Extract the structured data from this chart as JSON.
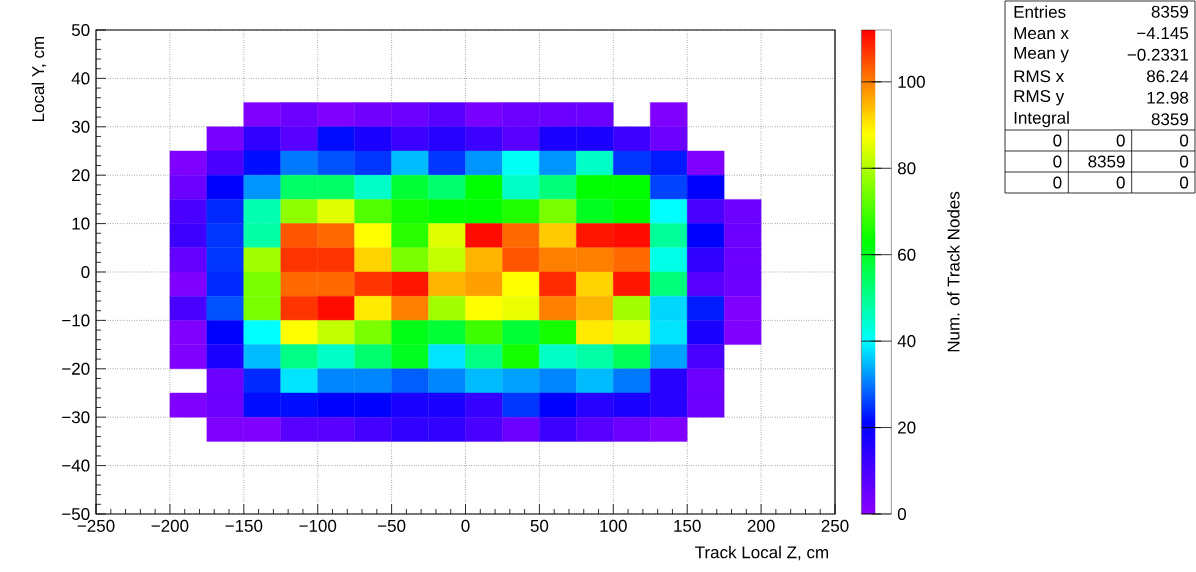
{
  "chart_data": {
    "type": "heatmap",
    "xlabel": "Track Local Z, cm",
    "ylabel": "Local Y, cm",
    "clabel": "Num. of Track Nodes",
    "x": [
      -187.5,
      -162.5,
      -137.5,
      -112.5,
      -87.5,
      -62.5,
      -37.5,
      -12.5,
      12.5,
      37.5,
      62.5,
      87.5,
      112.5,
      137.5,
      162.5,
      187.5
    ],
    "y": [
      32.5,
      27.5,
      22.5,
      17.5,
      12.5,
      7.5,
      2.5,
      -2.5,
      -7.5,
      -12.5,
      -17.5,
      -22.5,
      -27.5,
      -32.5
    ],
    "cells": [
      [
        null,
        null,
        2,
        5,
        2,
        4,
        5,
        8,
        3,
        5,
        5,
        5,
        null,
        2,
        null,
        null
      ],
      [
        null,
        3,
        14,
        8,
        22,
        17,
        12,
        15,
        12,
        8,
        17,
        17,
        12,
        5,
        null,
        null
      ],
      [
        2,
        10,
        22,
        30,
        27,
        25,
        35,
        25,
        32,
        41,
        32,
        45,
        25,
        23,
        2,
        null
      ],
      [
        5,
        21,
        32,
        54,
        54,
        45,
        58,
        53,
        63,
        45,
        52,
        63,
        63,
        26,
        21,
        null
      ],
      [
        10,
        24,
        47,
        77,
        85,
        71,
        65,
        63,
        63,
        66,
        75,
        60,
        63,
        40,
        10,
        5
      ],
      [
        12,
        25,
        48,
        104,
        102,
        88,
        67,
        85,
        111,
        102,
        93,
        110,
        111,
        49,
        21,
        5
      ],
      [
        6,
        25,
        79,
        107,
        107,
        92,
        75,
        82,
        95,
        104,
        100,
        100,
        102,
        42,
        14,
        5
      ],
      [
        2,
        24,
        75,
        102,
        102,
        107,
        110,
        95,
        97,
        88,
        108,
        92,
        110,
        52,
        8,
        5
      ],
      [
        10,
        27,
        75,
        107,
        111,
        90,
        100,
        79,
        88,
        86,
        100,
        95,
        79,
        37,
        23,
        2
      ],
      [
        2,
        21,
        40,
        88,
        82,
        75,
        61,
        58,
        69,
        58,
        65,
        90,
        85,
        38,
        17,
        2
      ],
      [
        2,
        17,
        35,
        51,
        45,
        53,
        60,
        38,
        51,
        65,
        45,
        48,
        55,
        33,
        10,
        null
      ],
      [
        null,
        5,
        24,
        38,
        31,
        31,
        28,
        31,
        35,
        33,
        31,
        35,
        30,
        15,
        5,
        null
      ],
      [
        2,
        5,
        22,
        22,
        21,
        21,
        17,
        17,
        13,
        25,
        21,
        15,
        17,
        15,
        5,
        null
      ],
      [
        null,
        2,
        2,
        8,
        8,
        11,
        14,
        14,
        10,
        5,
        12,
        8,
        5,
        2,
        null,
        null
      ]
    ],
    "xlim": [
      -250,
      250
    ],
    "ylim": [
      -50,
      50
    ],
    "clim": [
      0,
      112
    ],
    "xticks": [
      {
        "value": -250,
        "label": "−250"
      },
      {
        "value": -200,
        "label": "−200"
      },
      {
        "value": -150,
        "label": "−150"
      },
      {
        "value": -100,
        "label": "−100"
      },
      {
        "value": -50,
        "label": "−50"
      },
      0,
      50,
      100,
      150,
      200,
      250
    ],
    "yticks": [
      {
        "value": -50,
        "label": "−50"
      },
      {
        "value": -40,
        "label": "−40"
      },
      {
        "value": -30,
        "label": "−30"
      },
      {
        "value": -20,
        "label": "−20"
      },
      {
        "value": -10,
        "label": "−10"
      },
      0,
      10,
      20,
      30,
      40,
      50
    ],
    "cticks": [
      0,
      20,
      40,
      60,
      80,
      100
    ],
    "grid": true,
    "annotations": [
      "Entries",
      "8359",
      "Mean x",
      "−4.145",
      "Mean y",
      "−0.2331",
      "RMS x",
      "86.24",
      "RMS y",
      "12.98",
      "Integral",
      "8359",
      "0",
      "0",
      "0",
      "0",
      "8359",
      "0",
      "0",
      "0",
      "0"
    ]
  }
}
